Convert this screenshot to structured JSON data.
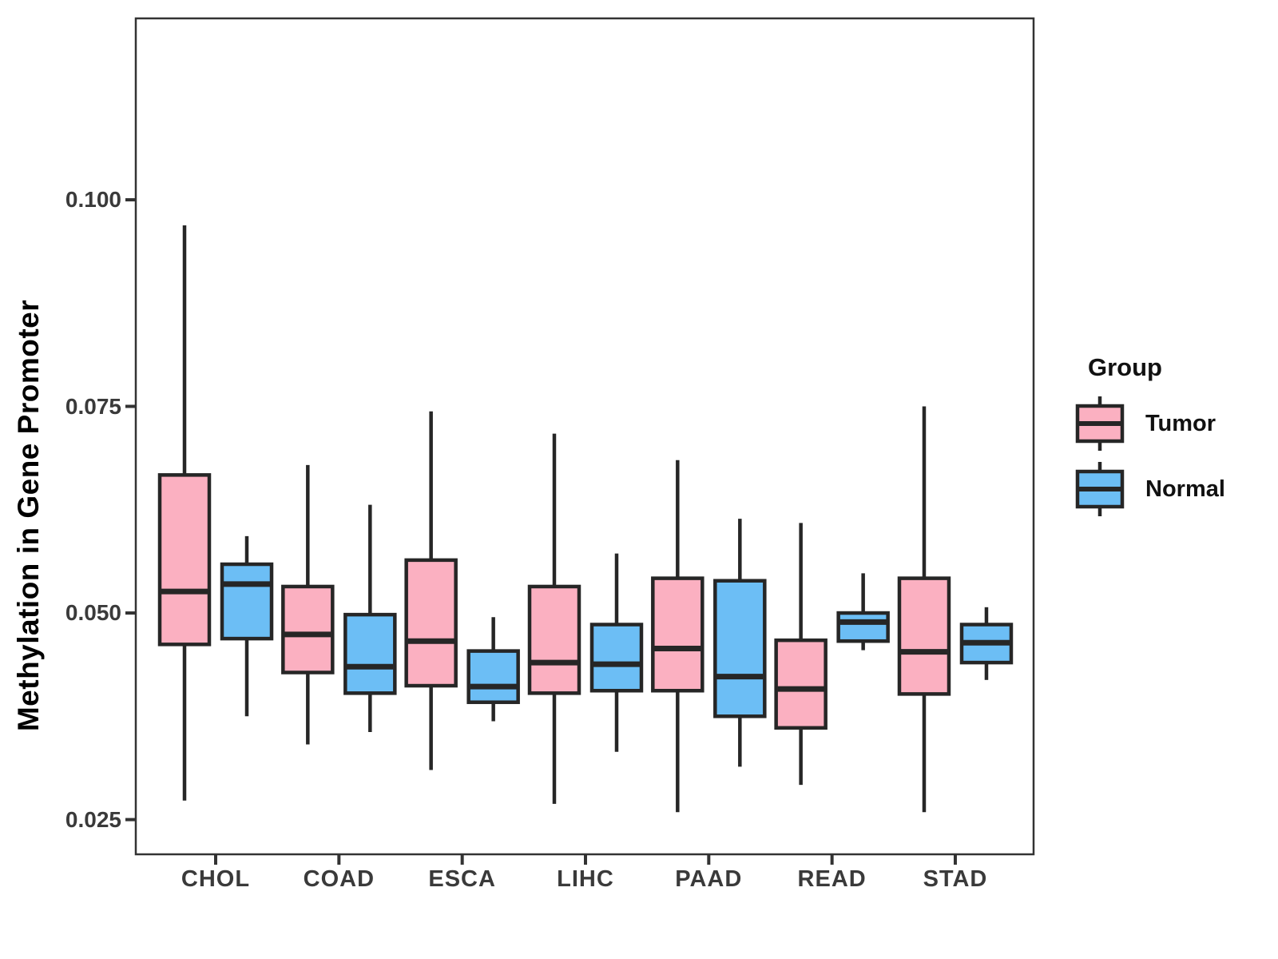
{
  "chart_data": {
    "type": "boxplot",
    "title": "",
    "xlabel": "",
    "ylabel": "Methylation in Gene Promoter",
    "categories": [
      "CHOL",
      "COAD",
      "ESCA",
      "LIHC",
      "PAAD",
      "READ",
      "STAD"
    ],
    "yaxis": {
      "tick_labels": [
        "0.100",
        "0.075",
        "0.050",
        "0.025"
      ],
      "tick_values": [
        0.1,
        0.075,
        0.05,
        0.025
      ],
      "range_lo": 0.0208,
      "range_hi": 0.12195,
      "grid": false
    },
    "legend": {
      "title": "Group",
      "position": "right"
    },
    "series": [
      {
        "name": "Tumor",
        "fill": "#FBB0C1",
        "stroke": "#262626",
        "boxes": [
          {
            "category": "CHOL",
            "whislo": 0.0273,
            "q1": 0.0462,
            "med": 0.0526,
            "q3": 0.0667,
            "whishi": 0.0969
          },
          {
            "category": "COAD",
            "whislo": 0.0341,
            "q1": 0.0428,
            "med": 0.0474,
            "q3": 0.0532,
            "whishi": 0.0679
          },
          {
            "category": "ESCA",
            "whislo": 0.031,
            "q1": 0.0412,
            "med": 0.0466,
            "q3": 0.0564,
            "whishi": 0.0744
          },
          {
            "category": "LIHC",
            "whislo": 0.0269,
            "q1": 0.0403,
            "med": 0.044,
            "q3": 0.0532,
            "whishi": 0.0717
          },
          {
            "category": "PAAD",
            "whislo": 0.0259,
            "q1": 0.0406,
            "med": 0.0457,
            "q3": 0.0542,
            "whishi": 0.0685
          },
          {
            "category": "READ",
            "whislo": 0.0292,
            "q1": 0.0361,
            "med": 0.0408,
            "q3": 0.0467,
            "whishi": 0.0609
          },
          {
            "category": "STAD",
            "whislo": 0.0259,
            "q1": 0.0402,
            "med": 0.0453,
            "q3": 0.0542,
            "whishi": 0.075
          }
        ]
      },
      {
        "name": "Normal",
        "fill": "#6CBEF5",
        "stroke": "#262626",
        "boxes": [
          {
            "category": "CHOL",
            "whislo": 0.0375,
            "q1": 0.0469,
            "med": 0.0535,
            "q3": 0.0559,
            "whishi": 0.0593
          },
          {
            "category": "COAD",
            "whislo": 0.0356,
            "q1": 0.0403,
            "med": 0.0435,
            "q3": 0.0498,
            "whishi": 0.0631
          },
          {
            "category": "ESCA",
            "whislo": 0.0369,
            "q1": 0.0392,
            "med": 0.0411,
            "q3": 0.0454,
            "whishi": 0.0495
          },
          {
            "category": "LIHC",
            "whislo": 0.0332,
            "q1": 0.0406,
            "med": 0.0438,
            "q3": 0.0486,
            "whishi": 0.0572
          },
          {
            "category": "PAAD",
            "whislo": 0.0314,
            "q1": 0.0375,
            "med": 0.0423,
            "q3": 0.0539,
            "whishi": 0.0614
          },
          {
            "category": "READ",
            "whislo": 0.0455,
            "q1": 0.0466,
            "med": 0.0489,
            "q3": 0.05,
            "whishi": 0.0548
          },
          {
            "category": "STAD",
            "whislo": 0.0419,
            "q1": 0.044,
            "med": 0.0464,
            "q3": 0.0486,
            "whishi": 0.0507
          }
        ]
      }
    ]
  }
}
